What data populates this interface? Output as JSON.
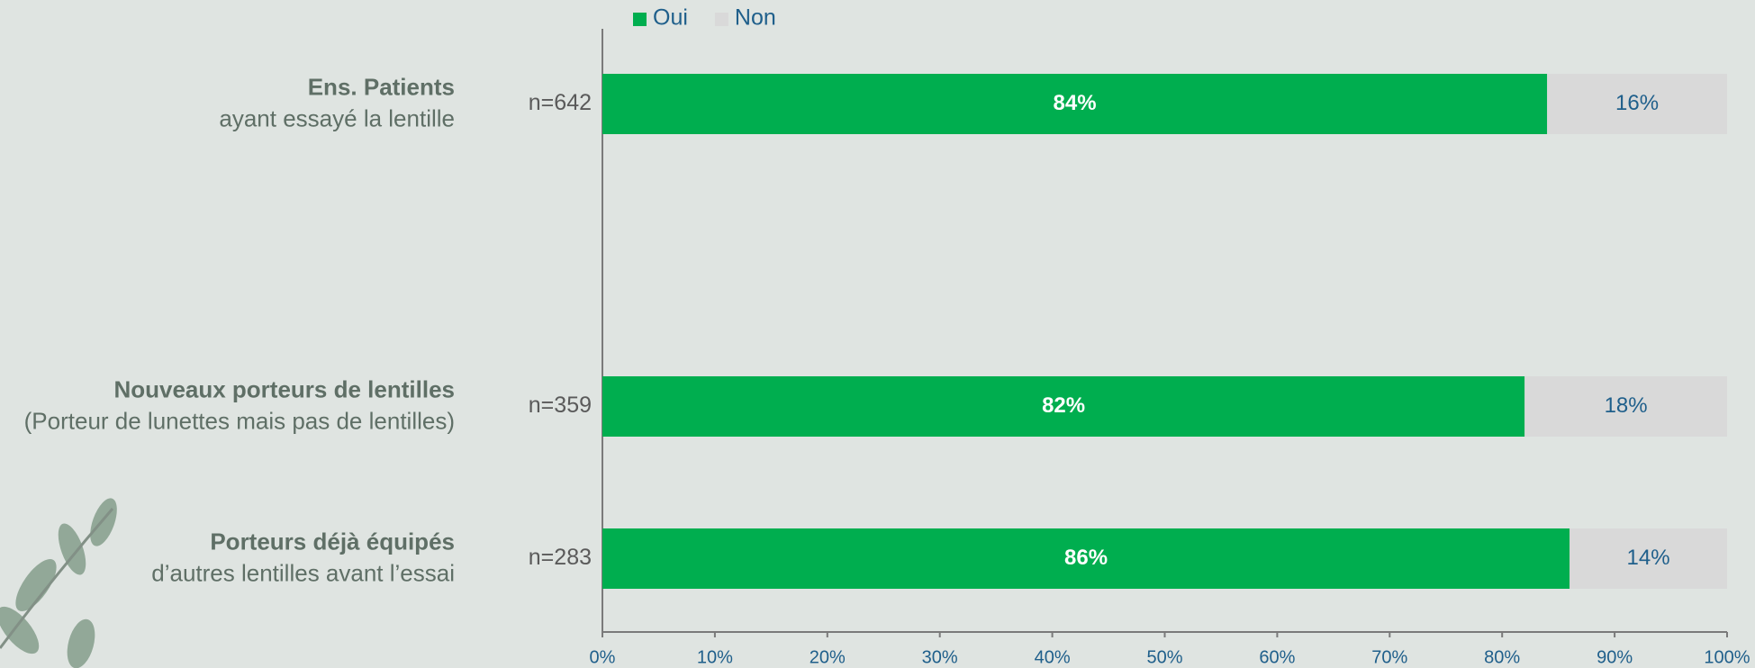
{
  "chart_data": {
    "type": "bar",
    "orientation": "horizontal",
    "stacked": true,
    "categories": [
      [
        "Ens. Patients",
        "ayant essayé la lentille"
      ],
      [
        "Nouveaux porteurs de lentilles",
        "(Porteur de lunettes mais pas de lentilles)"
      ],
      [
        "Porteurs déjà équipés",
        "d’autres lentilles avant l’essai"
      ]
    ],
    "n": [
      642,
      359,
      283
    ],
    "n_labels": [
      "n=642",
      "n=359",
      "n=283"
    ],
    "series": [
      {
        "name": "Oui",
        "color": "#00ae4f",
        "values": [
          84,
          82,
          86
        ],
        "value_labels": [
          "84%",
          "82%",
          "86%"
        ]
      },
      {
        "name": "Non",
        "color": "#d9d9d9",
        "values": [
          16,
          18,
          14
        ],
        "value_labels": [
          "16%",
          "18%",
          "14%"
        ]
      }
    ],
    "xlim": [
      0,
      100
    ],
    "xticks": [
      {
        "value": 0,
        "label": "0%"
      },
      {
        "value": 10,
        "label": "10%"
      },
      {
        "value": 20,
        "label": "20%"
      },
      {
        "value": 30,
        "label": "30%"
      },
      {
        "value": 40,
        "label": "40%"
      },
      {
        "value": 50,
        "label": "50%"
      },
      {
        "value": 60,
        "label": "60%"
      },
      {
        "value": 70,
        "label": "70%"
      },
      {
        "value": 80,
        "label": "80%"
      },
      {
        "value": 90,
        "label": "90%"
      },
      {
        "value": 100,
        "label": "100%"
      }
    ],
    "legend": "top"
  }
}
